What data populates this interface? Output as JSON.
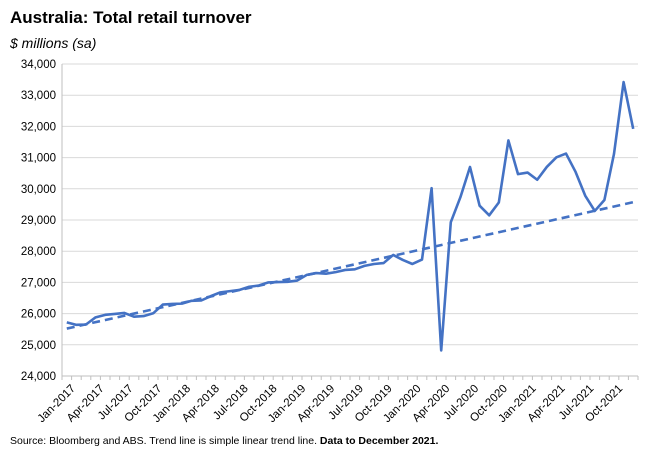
{
  "chart_data": {
    "type": "line",
    "title": "Australia: Total retail turnover",
    "subtitle": "$ millions (sa)",
    "xlabel": "",
    "ylabel": "",
    "ylim": [
      24000,
      34000
    ],
    "yticks": [
      24000,
      25000,
      26000,
      27000,
      28000,
      29000,
      30000,
      31000,
      32000,
      33000,
      34000
    ],
    "ytick_labels": [
      "24,000",
      "25,000",
      "26,000",
      "27,000",
      "28,000",
      "29,000",
      "30,000",
      "31,000",
      "32,000",
      "33,000",
      "34,000"
    ],
    "x": [
      "Jan-2017",
      "Feb-2017",
      "Mar-2017",
      "Apr-2017",
      "May-2017",
      "Jun-2017",
      "Jul-2017",
      "Aug-2017",
      "Sep-2017",
      "Oct-2017",
      "Nov-2017",
      "Dec-2017",
      "Jan-2018",
      "Feb-2018",
      "Mar-2018",
      "Apr-2018",
      "May-2018",
      "Jun-2018",
      "Jul-2018",
      "Aug-2018",
      "Sep-2018",
      "Oct-2018",
      "Nov-2018",
      "Dec-2018",
      "Jan-2019",
      "Feb-2019",
      "Mar-2019",
      "Apr-2019",
      "May-2019",
      "Jun-2019",
      "Jul-2019",
      "Aug-2019",
      "Sep-2019",
      "Oct-2019",
      "Nov-2019",
      "Dec-2019",
      "Jan-2020",
      "Feb-2020",
      "Mar-2020",
      "Apr-2020",
      "May-2020",
      "Jun-2020",
      "Jul-2020",
      "Aug-2020",
      "Sep-2020",
      "Oct-2020",
      "Nov-2020",
      "Dec-2020",
      "Jan-2021",
      "Feb-2021",
      "Mar-2021",
      "Apr-2021",
      "May-2021",
      "Jun-2021",
      "Jul-2021",
      "Aug-2021",
      "Sep-2021",
      "Oct-2021",
      "Nov-2021",
      "Dec-2021"
    ],
    "xtick_labels": [
      "Jan-2017",
      "Apr-2017",
      "Jul-2017",
      "Oct-2017",
      "Jan-2018",
      "Apr-2018",
      "Jul-2018",
      "Oct-2018",
      "Jan-2019",
      "Apr-2019",
      "Jul-2019",
      "Oct-2019",
      "Jan-2020",
      "Apr-2020",
      "Jul-2020",
      "Oct-2020",
      "Jan-2021",
      "Apr-2021",
      "Jul-2021",
      "Oct-2021"
    ],
    "series": [
      {
        "style": "solid",
        "color": "#4472C4",
        "values": [
          25720,
          25640,
          25650,
          25880,
          25960,
          25990,
          26020,
          25900,
          25920,
          26010,
          26290,
          26310,
          26320,
          26410,
          26420,
          26560,
          26680,
          26720,
          26760,
          26860,
          26900,
          27000,
          27010,
          27020,
          27060,
          27240,
          27300,
          27280,
          27330,
          27400,
          27420,
          27530,
          27590,
          27620,
          27880,
          27720,
          27590,
          27730,
          30020,
          24820,
          28930,
          29730,
          30700,
          29460,
          29150,
          29560,
          31550,
          30470,
          30520,
          30290,
          30700,
          31010,
          31130,
          30540,
          29780,
          29290,
          29640,
          31120,
          33420,
          31920
        ]
      },
      {
        "style": "dashed",
        "color": "#4472C4",
        "trend": true,
        "values_start_end": [
          25520,
          29570
        ]
      }
    ],
    "source_text": "Source: Bloomberg and ABS.  Trend line is simple linear trend line.",
    "source_bold": "Data to December 2021."
  }
}
